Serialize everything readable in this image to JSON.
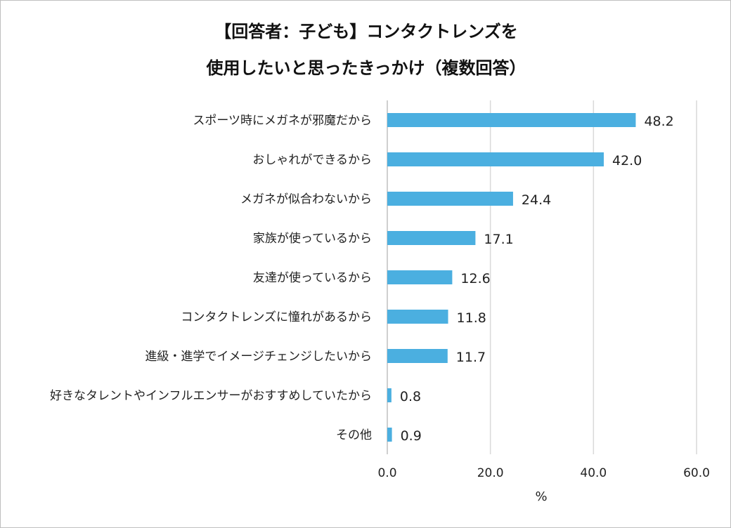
{
  "chart_data": {
    "type": "bar",
    "orientation": "horizontal",
    "title": [
      "【回答者：子ども】コンタクトレンズを",
      "使用したいと思ったきっかけ（複数回答）"
    ],
    "categories": [
      "スポーツ時にメガネが邪魔だから",
      "おしゃれができるから",
      "メガネが似合わないから",
      "家族が使っているから",
      "友達が使っているから",
      "コンタクトレンズに憧れがあるから",
      "進級・進学でイメージチェンジしたいから",
      "好きなタレントやインフルエンサーがおすすめしていたから",
      "その他"
    ],
    "values": [
      48.2,
      42.0,
      24.4,
      17.1,
      12.6,
      11.8,
      11.7,
      0.8,
      0.9
    ],
    "value_labels": [
      "48.2",
      "42.0",
      "24.4",
      "17.1",
      "12.6",
      "11.8",
      "11.7",
      "0.8",
      "0.9"
    ],
    "xlim": [
      0,
      60
    ],
    "xticks": [
      0,
      20,
      40,
      60
    ],
    "xtick_labels": [
      "0.0",
      "20.0",
      "40.0",
      "60.0"
    ],
    "xlabel": "%",
    "bar_color": "#4BAFE0",
    "grid": true
  }
}
